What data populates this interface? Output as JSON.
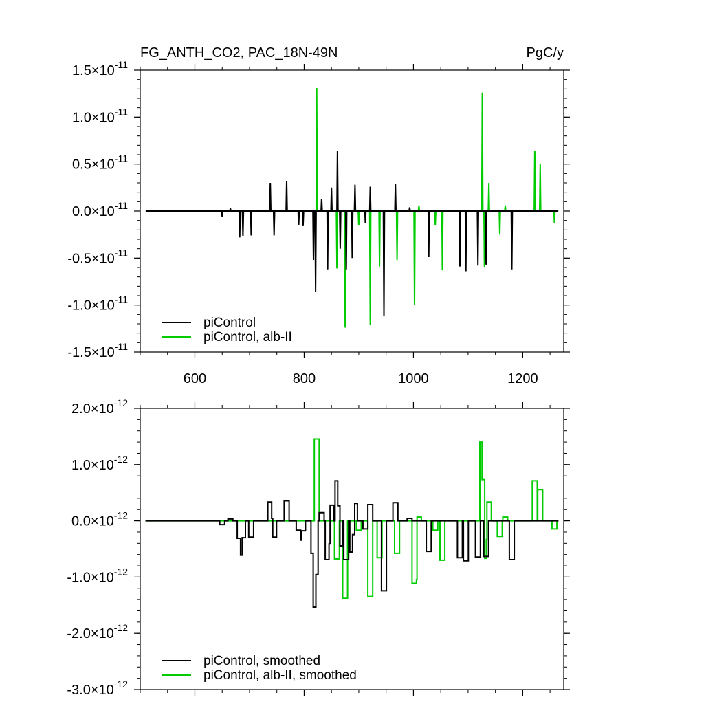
{
  "chart_data": [
    {
      "type": "line",
      "title": "FG_ANTH_CO2, PAC_18N-49N",
      "units": "PgC/y",
      "xlim": [
        500,
        1275
      ],
      "ylim": [
        -1.5e-11,
        1.5e-11
      ],
      "x_ticks": [
        600,
        800,
        1000,
        1200
      ],
      "x_tick_labels": [
        "600",
        "800",
        "1000",
        "1200"
      ],
      "y_ticks": [
        -1.5e-11,
        -1e-11,
        -5e-12,
        0,
        5e-12,
        1e-11,
        1.5e-11
      ],
      "y_tick_mantissas": [
        "-1.5",
        "-1.0",
        "-0.5",
        "0.0",
        "0.5",
        "1.0",
        "1.5"
      ],
      "y_tick_times": "×",
      "y_tick_exponent": "10",
      "y_tick_power": "-11",
      "legend": {
        "position": "bottom-left",
        "entries": [
          "piControl",
          "piControl, alb-II"
        ]
      },
      "series": [
        {
          "name": "piControl",
          "color": "#000000",
          "spikes": [
            [
              650,
              -6e-13
            ],
            [
              665,
              3e-13
            ],
            [
              682,
              -2.8e-12
            ],
            [
              688,
              -2.7e-12
            ],
            [
              703,
              -2.6e-12
            ],
            [
              738,
              3e-12
            ],
            [
              745,
              -2.6e-12
            ],
            [
              768,
              3.2e-12
            ],
            [
              790,
              -1.5e-12
            ],
            [
              798,
              -1.6e-12
            ],
            [
              817,
              -5.2e-12
            ],
            [
              821,
              -8.6e-12
            ],
            [
              832,
              1.3e-12
            ],
            [
              843,
              -6.2e-12
            ],
            [
              850,
              2.5e-12
            ],
            [
              861,
              6.4e-12
            ],
            [
              866,
              -4e-12
            ],
            [
              877,
              -6.2e-12
            ],
            [
              888,
              -5e-12
            ],
            [
              893,
              2.8e-12
            ],
            [
              912,
              -1.3e-12
            ],
            [
              921,
              2.6e-12
            ],
            [
              946,
              -1.12e-11
            ],
            [
              967,
              2.9e-12
            ],
            [
              993,
              4e-13
            ],
            [
              1028,
              -4.9e-12
            ],
            [
              1085,
              -5.9e-12
            ],
            [
              1096,
              -6.4e-12
            ],
            [
              1118,
              -5.8e-12
            ],
            [
              1133,
              -5.7e-12
            ],
            [
              1180,
              -6.2e-12
            ]
          ]
        },
        {
          "name": "piControl, alb-II",
          "color": "#00cc00",
          "spikes": [
            [
              823,
              1.31e-11
            ],
            [
              860,
              -6.1e-12
            ],
            [
              875,
              -1.24e-11
            ],
            [
              900,
              -1.5e-12
            ],
            [
              921,
              -1.21e-11
            ],
            [
              938,
              -5.9e-12
            ],
            [
              970,
              -5.2e-12
            ],
            [
              1002,
              -1e-11
            ],
            [
              1010,
              6e-13
            ],
            [
              1040,
              -1.5e-12
            ],
            [
              1053,
              -6.3e-12
            ],
            [
              1126,
              1.26e-11
            ],
            [
              1130,
              -6e-12
            ],
            [
              1138,
              3e-12
            ],
            [
              1158,
              -2.5e-12
            ],
            [
              1168,
              6e-13
            ],
            [
              1222,
              6.4e-12
            ],
            [
              1232,
              5e-12
            ],
            [
              1258,
              -1.3e-12
            ]
          ]
        }
      ]
    },
    {
      "type": "line",
      "xlim": [
        500,
        1275
      ],
      "ylim": [
        -3e-12,
        2e-12
      ],
      "x_ticks": [
        600,
        800,
        1000,
        1200
      ],
      "y_ticks": [
        -3e-12,
        -2e-12,
        -1e-12,
        0,
        1e-12,
        2e-12
      ],
      "y_tick_mantissas": [
        "-3.0",
        "-2.0",
        "-1.0",
        "0.0",
        "1.0",
        "2.0"
      ],
      "y_tick_times": "×",
      "y_tick_exponent": "10",
      "y_tick_power": "-12",
      "smoothing_window_years": 9,
      "legend": {
        "position": "bottom-left",
        "entries": [
          "piControl, smoothed",
          "piControl, alb-II, smoothed"
        ]
      },
      "series": [
        {
          "name": "piControl, smoothed",
          "color": "#000000",
          "derived_from": "piControl"
        },
        {
          "name": "piControl, alb-II, smoothed",
          "color": "#00cc00",
          "derived_from": "piControl, alb-II"
        }
      ]
    }
  ]
}
